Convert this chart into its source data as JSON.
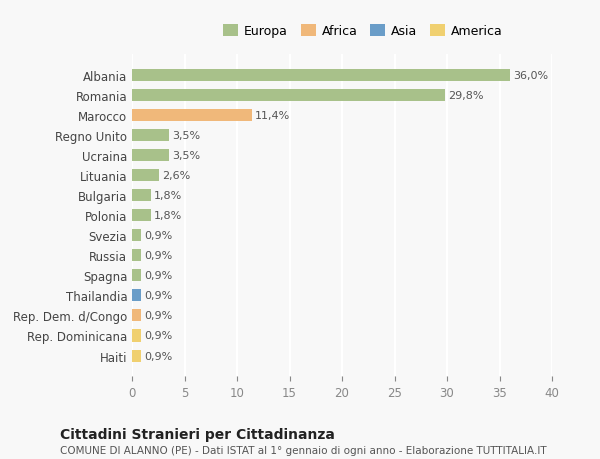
{
  "categories": [
    "Albania",
    "Romania",
    "Marocco",
    "Regno Unito",
    "Ucraina",
    "Lituania",
    "Bulgaria",
    "Polonia",
    "Svezia",
    "Russia",
    "Spagna",
    "Thailandia",
    "Rep. Dem. d/Congo",
    "Rep. Dominicana",
    "Haiti"
  ],
  "values": [
    36.0,
    29.8,
    11.4,
    3.5,
    3.5,
    2.6,
    1.8,
    1.8,
    0.9,
    0.9,
    0.9,
    0.9,
    0.9,
    0.9,
    0.9
  ],
  "labels": [
    "36,0%",
    "29,8%",
    "11,4%",
    "3,5%",
    "3,5%",
    "2,6%",
    "1,8%",
    "1,8%",
    "0,9%",
    "0,9%",
    "0,9%",
    "0,9%",
    "0,9%",
    "0,9%",
    "0,9%"
  ],
  "continents": [
    "Europa",
    "Europa",
    "Africa",
    "Europa",
    "Europa",
    "Europa",
    "Europa",
    "Europa",
    "Europa",
    "Europa",
    "Europa",
    "Asia",
    "Africa",
    "America",
    "America"
  ],
  "continent_colors": {
    "Europa": "#a8c18a",
    "Africa": "#f0b87a",
    "Asia": "#6a9dc8",
    "America": "#f0d070"
  },
  "legend_order": [
    "Europa",
    "Africa",
    "Asia",
    "America"
  ],
  "xlim": [
    0,
    40
  ],
  "xticks": [
    0,
    5,
    10,
    15,
    20,
    25,
    30,
    35,
    40
  ],
  "title": "Cittadini Stranieri per Cittadinanza",
  "subtitle": "COMUNE DI ALANNO (PE) - Dati ISTAT al 1° gennaio di ogni anno - Elaborazione TUTTITALIA.IT",
  "background_color": "#f8f8f8",
  "grid_color": "#ffffff",
  "bar_height": 0.6
}
